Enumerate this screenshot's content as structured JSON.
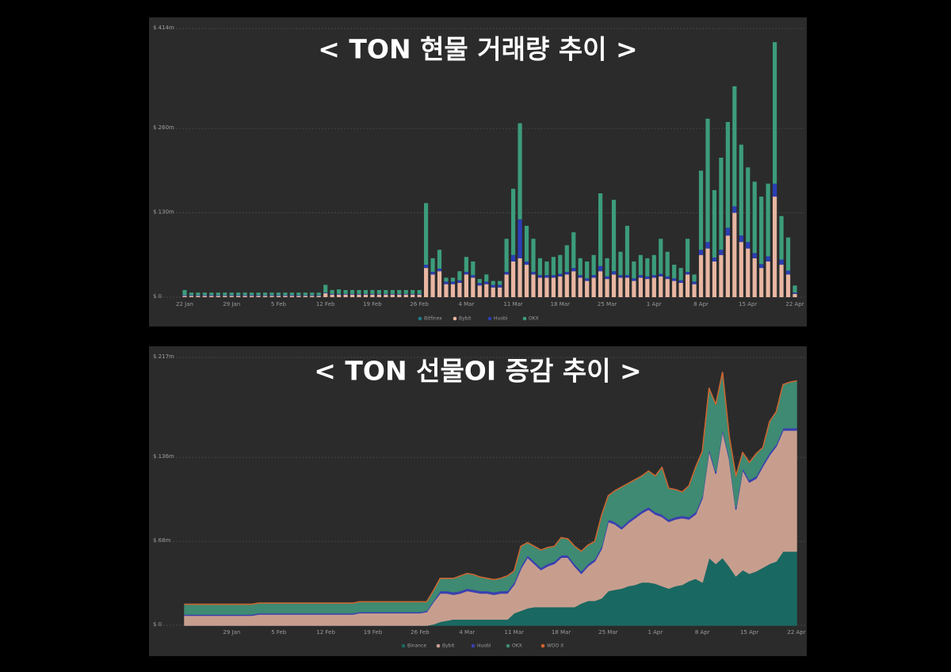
{
  "chart_data": [
    {
      "type": "bar",
      "stacked": true,
      "title": "< TON 현물 거래량 추이 >",
      "categories": [
        "22 Jan",
        null,
        null,
        null,
        null,
        null,
        null,
        "29 Jan",
        null,
        null,
        null,
        null,
        null,
        null,
        "5 Feb",
        null,
        null,
        null,
        null,
        null,
        null,
        "12 Feb",
        null,
        null,
        null,
        null,
        null,
        null,
        "19 Feb",
        null,
        null,
        null,
        null,
        null,
        null,
        "26 Feb",
        null,
        null,
        null,
        null,
        null,
        null,
        "4 Mar",
        null,
        null,
        null,
        null,
        null,
        null,
        "11 Mar",
        null,
        null,
        null,
        null,
        null,
        null,
        "18 Mar",
        null,
        null,
        null,
        null,
        null,
        null,
        "25 Mar",
        null,
        null,
        null,
        null,
        null,
        null,
        "1 Apr",
        null,
        null,
        null,
        null,
        null,
        null,
        "8 Apr",
        null,
        null,
        null,
        null,
        null,
        null,
        "15 Apr",
        null,
        null,
        null,
        null,
        null,
        null,
        "22 Apr"
      ],
      "ylim": [
        0,
        414
      ],
      "yticks": [
        {
          "value": 0,
          "label": "$ 0"
        },
        {
          "value": 130,
          "label": "$ 130m"
        },
        {
          "value": 260,
          "label": "$ 260m"
        },
        {
          "value": 414,
          "label": "$ 414m"
        }
      ],
      "grid": true,
      "legend": "bottom",
      "series": [
        {
          "name": "Bitfinex",
          "color": "#1f7d88",
          "values": [
            0,
            0,
            0,
            0,
            0,
            0,
            0,
            0,
            0,
            0,
            0,
            0,
            0,
            0,
            0,
            0,
            0,
            0,
            0,
            0,
            0,
            0,
            0,
            0,
            0,
            0,
            0,
            0,
            0,
            0,
            0,
            0,
            0,
            0,
            0,
            0,
            0,
            0,
            0,
            0,
            0,
            0,
            0,
            0,
            0,
            0,
            0,
            0,
            0,
            0,
            0,
            0,
            0,
            0,
            0,
            0,
            0,
            0,
            0,
            0,
            0,
            0,
            0,
            0,
            0,
            0,
            0,
            0,
            0,
            0,
            0,
            0,
            0,
            0,
            0,
            0,
            0,
            0,
            0,
            0,
            0,
            0,
            0,
            0,
            0,
            0,
            0,
            0,
            0,
            0,
            0,
            0
          ]
        },
        {
          "name": "Bybit",
          "color": "#e8b6a2",
          "values": [
            2,
            2,
            2,
            2,
            2,
            2,
            2,
            2,
            2,
            2,
            2,
            2,
            2,
            2,
            2,
            2,
            2,
            2,
            2,
            2,
            2,
            6,
            4,
            4,
            4,
            4,
            4,
            4,
            4,
            4,
            4,
            4,
            4,
            4,
            4,
            4,
            45,
            35,
            40,
            20,
            20,
            22,
            35,
            30,
            18,
            20,
            15,
            15,
            35,
            55,
            60,
            50,
            35,
            30,
            30,
            30,
            32,
            35,
            40,
            30,
            25,
            30,
            40,
            28,
            35,
            30,
            30,
            25,
            30,
            28,
            30,
            32,
            28,
            25,
            22,
            35,
            20,
            65,
            75,
            55,
            65,
            95,
            130,
            85,
            75,
            60,
            45,
            55,
            155,
            50,
            35,
            5
          ]
        },
        {
          "name": "Huobi",
          "color": "#2b3fb4",
          "values": [
            1,
            1,
            1,
            1,
            1,
            1,
            1,
            1,
            1,
            1,
            1,
            1,
            1,
            1,
            1,
            1,
            1,
            1,
            1,
            1,
            1,
            1,
            1,
            1,
            1,
            1,
            1,
            1,
            1,
            1,
            1,
            1,
            1,
            1,
            1,
            1,
            5,
            4,
            4,
            4,
            4,
            4,
            4,
            4,
            4,
            4,
            4,
            4,
            4,
            10,
            60,
            5,
            4,
            4,
            4,
            4,
            4,
            4,
            5,
            4,
            4,
            4,
            8,
            4,
            5,
            4,
            4,
            4,
            4,
            4,
            4,
            4,
            4,
            4,
            4,
            4,
            4,
            8,
            10,
            6,
            8,
            12,
            10,
            10,
            10,
            8,
            6,
            8,
            20,
            8,
            6,
            2
          ]
        },
        {
          "name": "OKX",
          "color": "#3c9c7c",
          "values": [
            8,
            4,
            4,
            4,
            4,
            4,
            4,
            4,
            4,
            4,
            4,
            4,
            4,
            4,
            4,
            4,
            4,
            4,
            4,
            4,
            4,
            12,
            6,
            7,
            6,
            6,
            6,
            6,
            6,
            6,
            6,
            6,
            6,
            6,
            6,
            6,
            95,
            21,
            29,
            6,
            6,
            14,
            23,
            21,
            6,
            11,
            6,
            6,
            51,
            102,
            148,
            55,
            51,
            26,
            21,
            28,
            29,
            41,
            55,
            26,
            26,
            31,
            112,
            28,
            110,
            36,
            76,
            26,
            31,
            28,
            31,
            54,
            38,
            21,
            19,
            51,
            11,
            122,
            190,
            104,
            142,
            163,
            185,
            140,
            115,
            110,
            104,
            112,
            218,
            67,
            51,
            11
          ]
        }
      ]
    },
    {
      "type": "area",
      "stacked": true,
      "title": "< TON 선물OI 증감 추이 >",
      "categories": [
        null,
        null,
        null,
        null,
        null,
        null,
        null,
        "29 Jan",
        null,
        null,
        null,
        null,
        null,
        null,
        "5 Feb",
        null,
        null,
        null,
        null,
        null,
        null,
        "12 Feb",
        null,
        null,
        null,
        null,
        null,
        null,
        "19 Feb",
        null,
        null,
        null,
        null,
        null,
        null,
        "26 Feb",
        null,
        null,
        null,
        null,
        null,
        null,
        "4 Mar",
        null,
        null,
        null,
        null,
        null,
        null,
        "11 Mar",
        null,
        null,
        null,
        null,
        null,
        null,
        "18 Mar",
        null,
        null,
        null,
        null,
        null,
        null,
        "25 Mar",
        null,
        null,
        null,
        null,
        null,
        null,
        "1 Apr",
        null,
        null,
        null,
        null,
        null,
        null,
        "8 Apr",
        null,
        null,
        null,
        null,
        null,
        null,
        "15 Apr",
        null,
        null,
        null,
        null,
        null,
        null,
        "22 Apr"
      ],
      "ylim": [
        0,
        217
      ],
      "yticks": [
        {
          "value": 0,
          "label": "$ 0"
        },
        {
          "value": 68,
          "label": "$ 68m"
        },
        {
          "value": 136,
          "label": "$ 136m"
        },
        {
          "value": 217,
          "label": "$ 217m"
        }
      ],
      "grid": true,
      "legend": "bottom",
      "series": [
        {
          "name": "Binance",
          "color": "#1a6862",
          "values": [
            0,
            0,
            0,
            0,
            0,
            0,
            0,
            0,
            0,
            0,
            0,
            0,
            0,
            0,
            0,
            0,
            0,
            0,
            0,
            0,
            0,
            0,
            0,
            0,
            0,
            0,
            0,
            0,
            0,
            0,
            0,
            0,
            0,
            0,
            0,
            0,
            0,
            1,
            3,
            4,
            5,
            5,
            5,
            5,
            5,
            5,
            5,
            5,
            5,
            10,
            12,
            14,
            15,
            15,
            15,
            15,
            15,
            15,
            15,
            18,
            20,
            20,
            22,
            28,
            29,
            30,
            32,
            33,
            35,
            35,
            34,
            32,
            30,
            32,
            33,
            36,
            38,
            35,
            55,
            50,
            55,
            48,
            40,
            45,
            42,
            44,
            47,
            50,
            52,
            60,
            60,
            60
          ]
        },
        {
          "name": "Bybit",
          "color": "#c79e8e",
          "values": [
            8,
            8,
            8,
            8,
            8,
            8,
            8,
            8,
            8,
            8,
            8,
            9,
            9,
            9,
            9,
            9,
            9,
            9,
            9,
            9,
            9,
            9,
            9,
            9,
            9,
            9,
            10,
            10,
            10,
            10,
            10,
            10,
            10,
            10,
            10,
            10,
            11,
            18,
            23,
            22,
            20,
            21,
            23,
            22,
            21,
            21,
            20,
            21,
            21,
            23,
            34,
            41,
            35,
            30,
            33,
            35,
            40,
            40,
            33,
            24,
            28,
            32,
            40,
            56,
            53,
            48,
            51,
            54,
            56,
            59,
            56,
            56,
            54,
            54,
            54,
            50,
            52,
            68,
            87,
            73,
            103,
            87,
            54,
            81,
            74,
            75,
            82,
            88,
            93,
            98,
            98,
            98
          ]
        },
        {
          "name": "Huobi",
          "color": "#3a40b0",
          "values": [
            1,
            1,
            1,
            1,
            1,
            1,
            1,
            1,
            1,
            1,
            1,
            1,
            1,
            1,
            1,
            1,
            1,
            1,
            1,
            1,
            1,
            1,
            1,
            1,
            1,
            1,
            1,
            1,
            1,
            1,
            1,
            1,
            1,
            1,
            1,
            1,
            1,
            1,
            2,
            2,
            2,
            2,
            2,
            2,
            2,
            2,
            2,
            2,
            2,
            2,
            2,
            2,
            2,
            2,
            2,
            2,
            2,
            2,
            2,
            2,
            2,
            2,
            2,
            2,
            2,
            2,
            2,
            2,
            2,
            2,
            2,
            2,
            2,
            2,
            2,
            2,
            2,
            2,
            2,
            2,
            2,
            2,
            2,
            2,
            2,
            2,
            2,
            2,
            2,
            2,
            2,
            2
          ]
        },
        {
          "name": "OKX",
          "color": "#3f8a72",
          "values": [
            8,
            8,
            8,
            8,
            8,
            8,
            8,
            8,
            8,
            8,
            8,
            8,
            8,
            8,
            8,
            8,
            8,
            8,
            8,
            8,
            8,
            8,
            8,
            8,
            8,
            8,
            8,
            8,
            8,
            8,
            8,
            8,
            8,
            8,
            8,
            8,
            7,
            8,
            10,
            10,
            11,
            12,
            12,
            12,
            11,
            10,
            10,
            10,
            12,
            9,
            16,
            10,
            12,
            14,
            13,
            12,
            14,
            13,
            14,
            16,
            15,
            14,
            25,
            19,
            25,
            32,
            30,
            29,
            28,
            29,
            29,
            38,
            25,
            22,
            19,
            25,
            36,
            36,
            48,
            54,
            45,
            16,
            25,
            12,
            14,
            18,
            13,
            25,
            26,
            35,
            37,
            38
          ]
        },
        {
          "name": "WOO X",
          "color": "#d2622c",
          "values": [
            0,
            0,
            0,
            0,
            0,
            0,
            0,
            0,
            0,
            0,
            0,
            0,
            0,
            0,
            0,
            0,
            0,
            0,
            0,
            0,
            0,
            0,
            0,
            0,
            0,
            0,
            0,
            0,
            0,
            0,
            0,
            0,
            0,
            0,
            0,
            0,
            0,
            0,
            0,
            0,
            0,
            0,
            0,
            0,
            0,
            0,
            0,
            0,
            0,
            0,
            0,
            0,
            0,
            0,
            0,
            0,
            0,
            0,
            0,
            0,
            0,
            0,
            0,
            0,
            0,
            0,
            0,
            0,
            0,
            0,
            0,
            0,
            0,
            0,
            0,
            0,
            0,
            0,
            0,
            0,
            0,
            0,
            0,
            0,
            0,
            0,
            0,
            0,
            0,
            0,
            0,
            0
          ]
        }
      ]
    }
  ]
}
